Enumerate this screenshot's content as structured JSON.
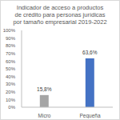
{
  "chart_data": {
    "type": "bar",
    "title": "Indicador de acceso a productos de crédito para personas jurídicas por tamaño empresarial 2019-2022",
    "categories": [
      "Micro",
      "Pequeña"
    ],
    "values": [
      15.8,
      63.6
    ],
    "value_labels": [
      "15,8%",
      "63,6%"
    ],
    "colors": [
      "#a5a5a5",
      "#4472c4"
    ],
    "ylim": [
      0,
      100
    ],
    "yticks": [
      {
        "value": 0,
        "label": "0%"
      },
      {
        "value": 10,
        "label": "10%"
      },
      {
        "value": 20,
        "label": "20%"
      },
      {
        "value": 30,
        "label": "30%"
      },
      {
        "value": 40,
        "label": "40%"
      },
      {
        "value": 50,
        "label": "50%"
      },
      {
        "value": 60,
        "label": "60%"
      },
      {
        "value": 70,
        "label": "70%"
      },
      {
        "value": 80,
        "label": "80%"
      },
      {
        "value": 90,
        "label": "90%"
      },
      {
        "value": 100,
        "label": "100%"
      }
    ],
    "grid": false,
    "data_labels": true
  }
}
